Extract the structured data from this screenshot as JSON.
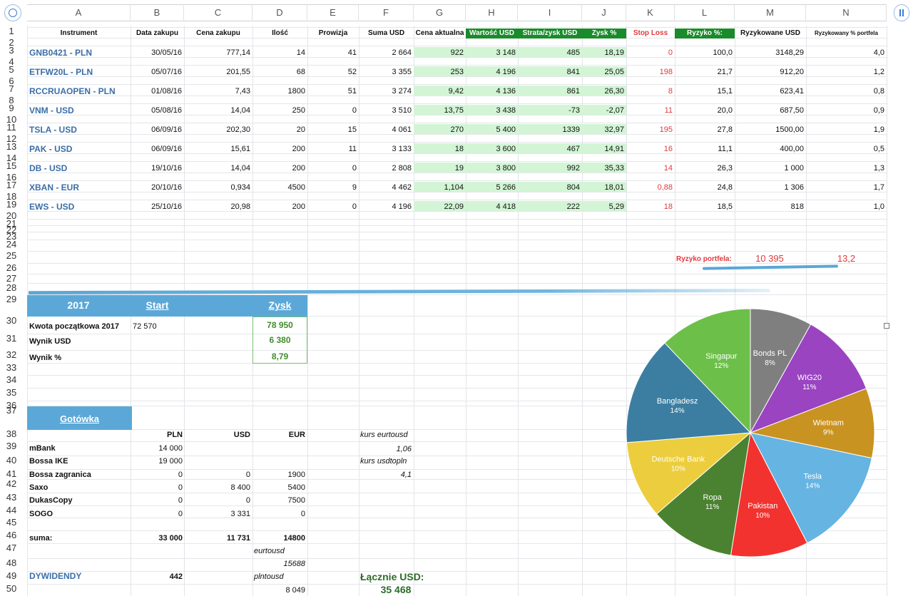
{
  "columns": [
    "A",
    "B",
    "C",
    "D",
    "E",
    "F",
    "G",
    "H",
    "I",
    "J",
    "K",
    "L",
    "M",
    "N"
  ],
  "row_numbers": [
    "1",
    "2",
    "3",
    "4",
    "5",
    "6",
    "7",
    "8",
    "9",
    "10",
    "11",
    "12",
    "13",
    "14",
    "15",
    "16",
    "17",
    "18",
    "19",
    "20",
    "21",
    "22",
    "23",
    "24",
    "25",
    "26",
    "27",
    "28",
    "29",
    "30",
    "31",
    "32",
    "33",
    "34",
    "35",
    "36",
    "37",
    "38",
    "39",
    "40",
    "41",
    "42",
    "43",
    "44",
    "45",
    "46",
    "47",
    "48",
    "49",
    "50"
  ],
  "headers": {
    "instrument": "Instrument",
    "data_zakupu": "Data zakupu",
    "cena_zakupu": "Cena zakupu",
    "ilosc": "Ilość",
    "prowizja": "Prowizja",
    "suma_usd": "Suma USD",
    "cena_aktualna": "Cena aktualna",
    "wartosc_usd": "Wartość USD",
    "strata_zysk": "Strata/zysk USD",
    "zysk_pct": "Zysk %",
    "stop_loss": "Stop Loss",
    "ryzyko_pct": "Ryzyko %:",
    "ryzykowane_usd": "Ryzykowane USD",
    "ryzykowany_portfel": "Ryzykowany % portfela"
  },
  "positions": [
    {
      "name": "GNB0421  - PLN",
      "date": "30/05/16",
      "price": "777,14",
      "qty": "14",
      "fee": "41",
      "sum": "2 664",
      "cur": "922",
      "value": "3 148",
      "pl": "485",
      "pct": "18,19",
      "stop": "0",
      "risk": "100,0",
      "risk_usd": "3148,29",
      "risk_port": "4,0"
    },
    {
      "name": "ETFW20L - PLN",
      "date": "05/07/16",
      "price": "201,55",
      "qty": "68",
      "fee": "52",
      "sum": "3 355",
      "cur": "253",
      "value": "4 196",
      "pl": "841",
      "pct": "25,05",
      "stop": "198",
      "risk": "21,7",
      "risk_usd": "912,20",
      "risk_port": "1,2"
    },
    {
      "name": "RCCRUAOPEN - PLN",
      "date": "01/08/16",
      "price": "7,43",
      "qty": "1800",
      "fee": "51",
      "sum": "3 274",
      "cur": "9,42",
      "value": "4 136",
      "pl": "861",
      "pct": "26,30",
      "stop": "8",
      "risk": "15,1",
      "risk_usd": "623,41",
      "risk_port": "0,8"
    },
    {
      "name": "VNM - USD",
      "date": "05/08/16",
      "price": "14,04",
      "qty": "250",
      "fee": "0",
      "sum": "3 510",
      "cur": "13,75",
      "value": "3 438",
      "pl": "-73",
      "pct": "-2,07",
      "stop": "11",
      "risk": "20,0",
      "risk_usd": "687,50",
      "risk_port": "0,9"
    },
    {
      "name": "TSLA - USD",
      "date": "06/09/16",
      "price": "202,30",
      "qty": "20",
      "fee": "15",
      "sum": "4 061",
      "cur": "270",
      "value": "5 400",
      "pl": "1339",
      "pct": "32,97",
      "stop": "195",
      "risk": "27,8",
      "risk_usd": "1500,00",
      "risk_port": "1,9"
    },
    {
      "name": "PAK - USD",
      "date": "06/09/16",
      "price": "15,61",
      "qty": "200",
      "fee": "11",
      "sum": "3 133",
      "cur": "18",
      "value": "3 600",
      "pl": "467",
      "pct": "14,91",
      "stop": "16",
      "risk": "11,1",
      "risk_usd": "400,00",
      "risk_port": "0,5"
    },
    {
      "name": "DB - USD",
      "date": "19/10/16",
      "price": "14,04",
      "qty": "200",
      "fee": "0",
      "sum": "2 808",
      "cur": "19",
      "value": "3 800",
      "pl": "992",
      "pct": "35,33",
      "stop": "14",
      "risk": "26,3",
      "risk_usd": "1 000",
      "risk_port": "1,3"
    },
    {
      "name": "XBAN - EUR",
      "date": "20/10/16",
      "price": "0,934",
      "qty": "4500",
      "fee": "9",
      "sum": "4 462",
      "cur": "1,104",
      "value": "5 266",
      "pl": "804",
      "pct": "18,01",
      "stop": "0,88",
      "risk": "24,8",
      "risk_usd": "1 306",
      "risk_port": "1,7"
    },
    {
      "name": "EWS - USD",
      "date": "25/10/16",
      "price": "20,98",
      "qty": "200",
      "fee": "0",
      "sum": "4 196",
      "cur": "22,09",
      "value": "4 418",
      "pl": "222",
      "pct": "5,29",
      "stop": "18",
      "risk": "18,5",
      "risk_usd": "818",
      "risk_port": "1,0"
    }
  ],
  "portfolio_risk": {
    "label": "Ryzyko portfela:",
    "usd": "10 395",
    "pct": "13,2"
  },
  "summary": {
    "year": "2017",
    "start_label": "Start",
    "zysk_label": "Zysk",
    "rows": [
      {
        "label": "Kwota początkowa 2017",
        "start": "72 570",
        "zysk": "78 950"
      },
      {
        "label": "Wynik USD",
        "start": "",
        "zysk": "6 380"
      },
      {
        "label": "Wynik %",
        "start": "",
        "zysk": "8,79"
      }
    ]
  },
  "cash": {
    "title": "Gotówka",
    "headers": {
      "pln": "PLN",
      "usd": "USD",
      "eur": "EUR"
    },
    "rows": [
      {
        "label": "mBank",
        "pln": "14 000",
        "usd": "",
        "eur": ""
      },
      {
        "label": "Bossa IKE",
        "pln": "19 000",
        "usd": "",
        "eur": ""
      },
      {
        "label": "Bossa zagranica",
        "pln": "0",
        "usd": "0",
        "eur": "1900"
      },
      {
        "label": "Saxo",
        "pln": "0",
        "usd": "8 400",
        "eur": "5400"
      },
      {
        "label": "DukasCopy",
        "pln": "0",
        "usd": "0",
        "eur": "7500"
      },
      {
        "label": "SOGO",
        "pln": "0",
        "usd": "3 331",
        "eur": "0"
      }
    ],
    "sum": {
      "label": "suma:",
      "pln": "33 000",
      "usd": "11 731",
      "eur": "14800"
    },
    "eurtousd_label": "eurtousd",
    "eurtousd_value": "15688",
    "plntousd_label": "plntousd",
    "plntousd_value": "8 049",
    "kurs_eurtousd_label": "kurs eurtousd",
    "kurs_eurtousd": "1,06",
    "kurs_usdtopln_label": "kurs usdtopln",
    "kurs_usdtopln": "4,1"
  },
  "dividends": {
    "label": "DYWIDENDY",
    "value": "442"
  },
  "total": {
    "label": "Łącznie USD:",
    "value": "35 468"
  },
  "chart_data": {
    "type": "pie",
    "title": "",
    "categories": [
      "Bonds PL",
      "WIG20",
      "Wietnam",
      "Tesla",
      "Pakistan",
      "Ropa",
      "Deutsche Bank",
      "Bangladesz",
      "Singapur"
    ],
    "values": [
      8,
      11,
      9,
      14,
      10,
      11,
      10,
      14,
      12
    ],
    "labels": [
      "8%",
      "11%",
      "9%",
      "14%",
      "10%",
      "11%",
      "10%",
      "14%",
      "12%"
    ],
    "colors": [
      "#7f7f7f",
      "#9a44c2",
      "#c99322",
      "#66b4e2",
      "#f1322f",
      "#4b8231",
      "#eccd3d",
      "#3c7ea1",
      "#6cc049"
    ]
  }
}
